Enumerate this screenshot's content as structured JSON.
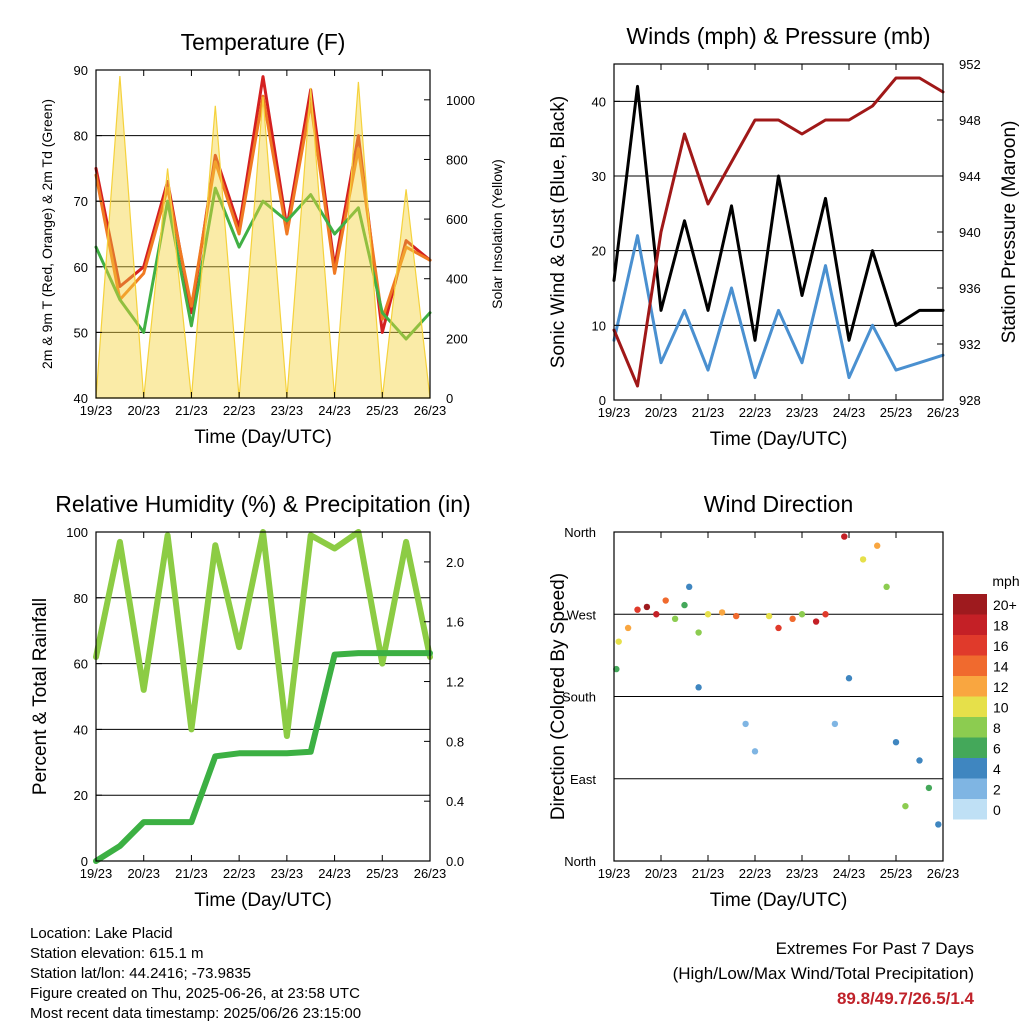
{
  "time_ticks": [
    "19/23",
    "20/23",
    "21/23",
    "22/23",
    "23/23",
    "24/23",
    "25/23",
    "26/23"
  ],
  "chart_data": [
    {
      "type": "line",
      "title": "Temperature (F)",
      "xlabel": "Time (Day/UTC)",
      "ylabel": "2m & 9m T (Red, Orange) & 2m Td (Green)",
      "y2label": "Solar Insolation (Yellow)",
      "ylim": [
        40,
        90
      ],
      "y2lim": [
        0,
        1100
      ],
      "yticks": [
        40,
        50,
        60,
        70,
        80,
        90
      ],
      "y2ticks": [
        0,
        200,
        400,
        600,
        800,
        1000
      ],
      "x": [
        0,
        0.5,
        1,
        1.5,
        2,
        2.5,
        3,
        3.5,
        4,
        4.5,
        5,
        5.5,
        6,
        6.5,
        7
      ],
      "series": [
        {
          "name": "2m T",
          "color": "#d42020",
          "axis": "left",
          "values": [
            75,
            57,
            60,
            73,
            53,
            77,
            66,
            89,
            66,
            87,
            60,
            80,
            50,
            64,
            61
          ]
        },
        {
          "name": "9m T",
          "color": "#f07a22",
          "axis": "left",
          "values": [
            74,
            55,
            59,
            72,
            54,
            76,
            65,
            86,
            65,
            85,
            59,
            78,
            52,
            63,
            61
          ]
        },
        {
          "name": "2m Td",
          "color": "#41b044",
          "axis": "left",
          "values": [
            63,
            55,
            50,
            70,
            51,
            72,
            63,
            70,
            67,
            71,
            65,
            69,
            53,
            49,
            53
          ]
        },
        {
          "name": "Solar Insolation",
          "color": "#f5d23c",
          "axis": "right",
          "type": "area",
          "values": [
            0,
            1080,
            0,
            770,
            0,
            980,
            0,
            1010,
            0,
            1040,
            0,
            1060,
            0,
            700,
            0
          ]
        }
      ]
    },
    {
      "type": "line",
      "title": "Winds (mph) & Pressure (mb)",
      "xlabel": "Time (Day/UTC)",
      "ylabel": "Sonic Wind & Gust (Blue, Black)",
      "y2label": "Station Pressure (Maroon)",
      "ylim": [
        0,
        45
      ],
      "y2lim": [
        928,
        952
      ],
      "yticks": [
        0,
        10,
        20,
        30,
        40
      ],
      "y2ticks": [
        928,
        932,
        936,
        940,
        944,
        948,
        952
      ],
      "x": [
        0,
        0.5,
        1,
        1.5,
        2,
        2.5,
        3,
        3.5,
        4,
        4.5,
        5,
        5.5,
        6,
        6.5,
        7
      ],
      "series": [
        {
          "name": "Wind",
          "color": "#4a90d0",
          "axis": "left",
          "values": [
            8,
            22,
            5,
            12,
            4,
            15,
            3,
            12,
            5,
            18,
            3,
            10,
            4,
            5,
            6
          ]
        },
        {
          "name": "Gust",
          "color": "#000000",
          "axis": "left",
          "values": [
            16,
            42,
            12,
            24,
            12,
            26,
            8,
            30,
            14,
            27,
            8,
            20,
            10,
            12,
            12
          ]
        },
        {
          "name": "Station Pressure",
          "color": "#a01818",
          "axis": "right",
          "values": [
            933,
            929,
            940,
            947,
            942,
            945,
            948,
            948,
            947,
            948,
            948,
            949,
            951,
            951,
            950
          ]
        }
      ]
    },
    {
      "type": "line",
      "title": "Relative Humidity (%) & Precipitation (in)",
      "xlabel": "Time (Day/UTC)",
      "ylabel": "Percent & Total Rainfall",
      "ylim": [
        0,
        100
      ],
      "y2lim": [
        0,
        2.2
      ],
      "yticks": [
        0,
        20,
        40,
        60,
        80,
        100
      ],
      "y2ticks": [
        "0.0",
        "0.4",
        "0.8",
        "1.2",
        "1.6",
        "2.0"
      ],
      "x": [
        0,
        0.5,
        1,
        1.5,
        2,
        2.5,
        3,
        3.5,
        4,
        4.5,
        5,
        5.5,
        6,
        6.5,
        7
      ],
      "series": [
        {
          "name": "Relative Humidity",
          "color": "#8ccc44",
          "axis": "left",
          "values": [
            62,
            97,
            52,
            99,
            40,
            96,
            65,
            100,
            38,
            99,
            95,
            100,
            60,
            97,
            62
          ]
        },
        {
          "name": "Total Precipitation",
          "color": "#3cb043",
          "axis": "right",
          "values": [
            0.0,
            0.1,
            0.26,
            0.26,
            0.26,
            0.7,
            0.72,
            0.72,
            0.72,
            0.73,
            1.38,
            1.39,
            1.39,
            1.39,
            1.39
          ]
        }
      ]
    },
    {
      "type": "scatter",
      "title": "Wind Direction",
      "xlabel": "Time (Day/UTC)",
      "ylabel": "Direction (Colored By Speed)",
      "yticks": [
        "North",
        "East",
        "South",
        "West",
        "North"
      ],
      "ylim": [
        0,
        360
      ],
      "colorbar": {
        "title": "mph",
        "labels": [
          "20+",
          "18",
          "16",
          "14",
          "12",
          "10",
          "8",
          "6",
          "4",
          "2",
          "0"
        ],
        "colors": [
          "#9e1a1e",
          "#c42026",
          "#e03a2b",
          "#f06a2e",
          "#f9a640",
          "#e6e04a",
          "#8ccc50",
          "#44a85a",
          "#3f86c0",
          "#7fb5e3",
          "#bfe0f5"
        ]
      },
      "points": [
        {
          "x": 0.05,
          "y": 210,
          "speed": 6
        },
        {
          "x": 0.1,
          "y": 240,
          "speed": 10
        },
        {
          "x": 0.3,
          "y": 255,
          "speed": 12
        },
        {
          "x": 0.5,
          "y": 275,
          "speed": 16
        },
        {
          "x": 0.7,
          "y": 278,
          "speed": 20
        },
        {
          "x": 0.9,
          "y": 270,
          "speed": 18
        },
        {
          "x": 1.1,
          "y": 285,
          "speed": 14
        },
        {
          "x": 1.3,
          "y": 265,
          "speed": 8
        },
        {
          "x": 1.5,
          "y": 280,
          "speed": 6
        },
        {
          "x": 1.6,
          "y": 300,
          "speed": 4
        },
        {
          "x": 1.8,
          "y": 250,
          "speed": 8
        },
        {
          "x": 1.8,
          "y": 190,
          "speed": 4
        },
        {
          "x": 2.0,
          "y": 270,
          "speed": 10
        },
        {
          "x": 2.3,
          "y": 272,
          "speed": 12
        },
        {
          "x": 2.6,
          "y": 268,
          "speed": 14
        },
        {
          "x": 2.8,
          "y": 150,
          "speed": 2
        },
        {
          "x": 3.0,
          "y": 120,
          "speed": 2
        },
        {
          "x": 3.3,
          "y": 268,
          "speed": 10
        },
        {
          "x": 3.5,
          "y": 255,
          "speed": 16
        },
        {
          "x": 3.8,
          "y": 265,
          "speed": 14
        },
        {
          "x": 4.0,
          "y": 270,
          "speed": 8
        },
        {
          "x": 4.3,
          "y": 262,
          "speed": 18
        },
        {
          "x": 4.5,
          "y": 270,
          "speed": 16
        },
        {
          "x": 4.7,
          "y": 150,
          "speed": 2
        },
        {
          "x": 4.9,
          "y": 355,
          "speed": 18
        },
        {
          "x": 5.0,
          "y": 200,
          "speed": 4
        },
        {
          "x": 5.3,
          "y": 330,
          "speed": 10
        },
        {
          "x": 5.6,
          "y": 345,
          "speed": 12
        },
        {
          "x": 5.8,
          "y": 300,
          "speed": 8
        },
        {
          "x": 6.0,
          "y": 130,
          "speed": 4
        },
        {
          "x": 6.2,
          "y": 60,
          "speed": 8
        },
        {
          "x": 6.5,
          "y": 110,
          "speed": 4
        },
        {
          "x": 6.7,
          "y": 80,
          "speed": 6
        },
        {
          "x": 6.9,
          "y": 40,
          "speed": 4
        }
      ]
    }
  ],
  "footer": {
    "location": "Location: Lake Placid",
    "elevation": "Station elevation: 615.1 m",
    "latlon": "Station lat/lon: 44.2416; -73.9835",
    "created": "Figure created on Thu, 2025-06-26, at 23:58 UTC",
    "recent": "Most recent data timestamp: 2025/06/26 23:15:00",
    "extremes_title": "Extremes For Past 7 Days",
    "extremes_subtitle": "(High/Low/Max Wind/Total Precipitation)",
    "extremes_values": "89.8/49.7/26.5/1.4",
    "extremes_color": "#c0222a"
  }
}
